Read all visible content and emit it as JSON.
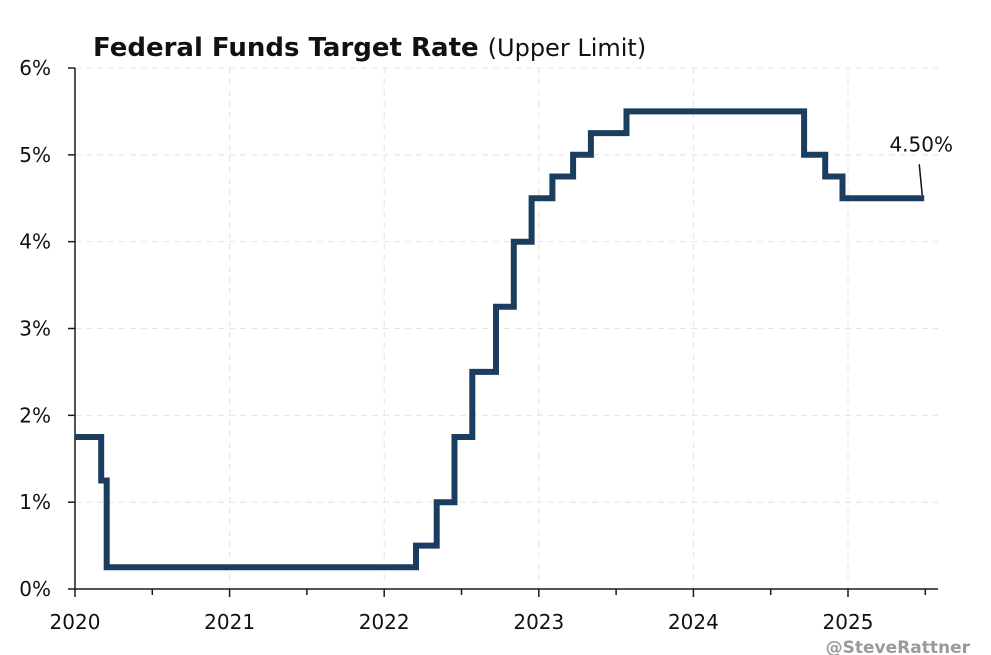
{
  "chart_data": {
    "type": "line",
    "title": "Federal Funds Target Rate",
    "subtitle": "(Upper Limit)",
    "xlabel": "",
    "ylabel": "",
    "x_ticks": [
      "2020",
      "2021",
      "2022",
      "2023",
      "2024",
      "2025"
    ],
    "y_ticks": [
      "0%",
      "1%",
      "2%",
      "3%",
      "4%",
      "5%",
      "6%"
    ],
    "xlim": [
      2020.0,
      2025.58
    ],
    "ylim": [
      0,
      6
    ],
    "grid": true,
    "line_style": "step",
    "series": [
      {
        "color": "#1b3d5f",
        "points": [
          {
            "date": "2020-01-01",
            "value": 1.75
          },
          {
            "date": "2020-03-03",
            "value": 1.25
          },
          {
            "date": "2020-03-16",
            "value": 0.25
          },
          {
            "date": "2022-03-17",
            "value": 0.5
          },
          {
            "date": "2022-05-05",
            "value": 1.0
          },
          {
            "date": "2022-06-16",
            "value": 1.75
          },
          {
            "date": "2022-07-28",
            "value": 2.5
          },
          {
            "date": "2022-09-22",
            "value": 3.25
          },
          {
            "date": "2022-11-03",
            "value": 4.0
          },
          {
            "date": "2022-12-15",
            "value": 4.5
          },
          {
            "date": "2023-02-02",
            "value": 4.75
          },
          {
            "date": "2023-03-23",
            "value": 5.0
          },
          {
            "date": "2023-05-04",
            "value": 5.25
          },
          {
            "date": "2023-07-27",
            "value": 5.5
          },
          {
            "date": "2024-09-19",
            "value": 5.0
          },
          {
            "date": "2024-11-08",
            "value": 4.75
          },
          {
            "date": "2024-12-19",
            "value": 4.5
          },
          {
            "date": "2025-06-30",
            "value": 4.5
          }
        ]
      }
    ],
    "annotations": [
      {
        "text": "4.50%",
        "date": "2025-06-30",
        "value": 4.5
      }
    ]
  },
  "watermark": "@SteveRattner"
}
